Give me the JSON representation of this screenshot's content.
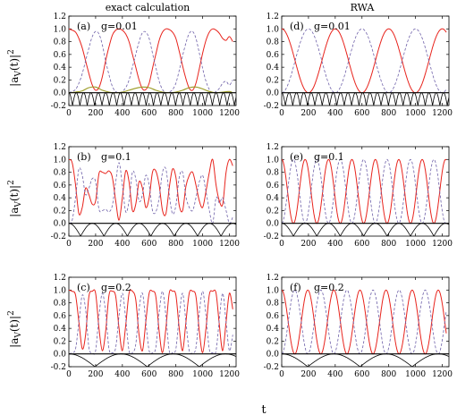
{
  "figure": {
    "column_titles": [
      "exact calculation",
      "RWA"
    ],
    "xlabel": "t",
    "ylabel": "|a_v(t)|^2",
    "ylabel_base": "|a",
    "ylabel_sub": "V",
    "ylabel_tail": "(t)|",
    "ylabel_sup": "2"
  },
  "chart_data": [
    {
      "type": "line",
      "panel": "(a)",
      "label": "g=0.01",
      "column": "exact calculation",
      "xlim": [
        0,
        1250
      ],
      "ylim": [
        -0.2,
        1.2
      ],
      "xticks": [
        0,
        200,
        400,
        600,
        800,
        1000,
        1200
      ],
      "yticks": [
        -0.2,
        0.0,
        0.2,
        0.4,
        0.6,
        0.8,
        1.0,
        1.2
      ],
      "ytick_labels": [
        "-0.2",
        "0.0",
        "0.2",
        "0.4",
        "0.6",
        "0.8",
        "1.0",
        "1.2"
      ],
      "series": [
        {
          "style": "solid-red",
          "x": [
            0,
            25,
            50,
            75,
            100,
            125,
            150,
            175,
            200,
            225,
            250,
            275,
            300,
            325,
            350,
            375,
            400,
            425,
            450,
            475,
            500,
            525,
            550,
            575,
            600,
            625,
            650,
            675,
            700,
            725,
            750,
            775,
            800,
            825,
            850,
            875,
            900,
            925,
            950,
            975,
            1000,
            1025,
            1050,
            1075,
            1100,
            1125,
            1150,
            1175,
            1200,
            1225
          ],
          "values": [
            1.0,
            0.98,
            0.95,
            0.85,
            0.7,
            0.5,
            0.3,
            0.12,
            0.04,
            0.08,
            0.25,
            0.5,
            0.72,
            0.9,
            0.98,
            1.0,
            0.98,
            0.92,
            0.8,
            0.6,
            0.4,
            0.2,
            0.06,
            0.05,
            0.15,
            0.38,
            0.6,
            0.82,
            0.95,
            1.0,
            0.99,
            0.95,
            0.85,
            0.65,
            0.42,
            0.22,
            0.07,
            0.04,
            0.15,
            0.38,
            0.62,
            0.82,
            0.95,
            1.0,
            0.98,
            0.93,
            0.85,
            0.82,
            0.88,
            0.8
          ]
        },
        {
          "style": "dashed-blue",
          "x": [
            0,
            25,
            50,
            75,
            100,
            125,
            150,
            175,
            200,
            225,
            250,
            275,
            300,
            325,
            350,
            375,
            400,
            425,
            450,
            475,
            500,
            525,
            550,
            575,
            600,
            625,
            650,
            675,
            700,
            725,
            750,
            775,
            800,
            825,
            850,
            875,
            900,
            925,
            950,
            975,
            1000,
            1025,
            1050,
            1075,
            1100,
            1125,
            1150,
            1175,
            1200,
            1225
          ],
          "values": [
            0.0,
            0.02,
            0.05,
            0.15,
            0.3,
            0.5,
            0.7,
            0.88,
            0.96,
            0.92,
            0.75,
            0.5,
            0.28,
            0.1,
            0.02,
            0.0,
            0.02,
            0.08,
            0.2,
            0.4,
            0.6,
            0.8,
            0.94,
            0.95,
            0.85,
            0.62,
            0.4,
            0.18,
            0.05,
            0.0,
            0.01,
            0.05,
            0.15,
            0.35,
            0.58,
            0.78,
            0.93,
            0.96,
            0.85,
            0.62,
            0.38,
            0.18,
            0.05,
            0.0,
            0.02,
            0.07,
            0.15,
            0.18,
            0.12,
            0.2
          ]
        },
        {
          "style": "solid-olive",
          "x": [
            0,
            50,
            100,
            150,
            200,
            250,
            300,
            350,
            400,
            450,
            500,
            550,
            600,
            650,
            700,
            750,
            800,
            850,
            900,
            950,
            1000,
            1050,
            1100,
            1150,
            1200,
            1225
          ],
          "values": [
            0.0,
            0.01,
            0.03,
            0.08,
            0.09,
            0.04,
            0.01,
            0.0,
            0.01,
            0.04,
            0.07,
            0.09,
            0.08,
            0.04,
            0.01,
            0.0,
            0.01,
            0.04,
            0.08,
            0.09,
            0.06,
            0.02,
            0.0,
            0.01,
            0.02,
            0.0
          ]
        },
        {
          "style": "solid-black",
          "x": [
            0,
            1250
          ],
          "values": [
            0,
            0
          ]
        },
        {
          "style": "black-oscillation",
          "ymin": -0.2,
          "ymax": 0.0,
          "x_start": 0,
          "x_end": 1250,
          "period": 55
        }
      ]
    },
    {
      "type": "line",
      "panel": "(b)",
      "label": "g=0.1",
      "column": "exact calculation",
      "xlim": [
        0,
        1250
      ],
      "ylim": [
        -0.2,
        1.2
      ],
      "xticks": [
        0,
        200,
        400,
        600,
        800,
        1000,
        1200
      ],
      "yticks": [
        -0.2,
        0.0,
        0.2,
        0.4,
        0.6,
        0.8,
        1.0,
        1.2
      ],
      "ytick_labels": [
        "-0.2",
        "0.0",
        "0.2",
        "0.4",
        "0.6",
        "0.8",
        "1.0",
        "1.2"
      ],
      "series": [
        {
          "style": "solid-red",
          "x": [
            0,
            25,
            50,
            75,
            100,
            125,
            150,
            175,
            200,
            225,
            250,
            275,
            300,
            325,
            350,
            375,
            400,
            425,
            450,
            475,
            500,
            525,
            550,
            575,
            600,
            625,
            650,
            675,
            700,
            725,
            750,
            775,
            800,
            825,
            850,
            875,
            900,
            925,
            950,
            975,
            1000,
            1025,
            1050,
            1075,
            1100,
            1125,
            1150,
            1175,
            1200,
            1225
          ],
          "values": [
            1.0,
            0.95,
            0.6,
            0.15,
            0.25,
            0.55,
            0.45,
            0.3,
            0.35,
            0.78,
            0.8,
            0.78,
            0.82,
            0.72,
            0.35,
            0.05,
            0.4,
            0.82,
            0.65,
            0.2,
            0.3,
            0.65,
            0.55,
            0.25,
            0.4,
            0.8,
            0.82,
            0.6,
            0.2,
            0.15,
            0.55,
            0.85,
            0.72,
            0.28,
            0.2,
            0.58,
            0.75,
            0.8,
            0.6,
            0.35,
            0.25,
            0.5,
            0.8,
            1.0,
            0.6,
            0.35,
            0.3,
            0.8,
            1.0,
            0.9
          ]
        },
        {
          "style": "dashed-blue",
          "x": [
            0,
            25,
            50,
            75,
            100,
            125,
            150,
            175,
            200,
            225,
            250,
            275,
            300,
            325,
            350,
            375,
            400,
            425,
            450,
            475,
            500,
            525,
            550,
            575,
            600,
            625,
            650,
            675,
            700,
            725,
            750,
            775,
            800,
            825,
            850,
            875,
            900,
            925,
            950,
            975,
            1000,
            1025,
            1050,
            1075,
            1100,
            1125,
            1150,
            1175,
            1200,
            1225
          ],
          "values": [
            0.0,
            0.05,
            0.4,
            0.85,
            0.75,
            0.45,
            0.55,
            0.7,
            0.65,
            0.22,
            0.2,
            0.22,
            0.18,
            0.28,
            0.65,
            0.95,
            0.6,
            0.18,
            0.35,
            0.8,
            0.7,
            0.35,
            0.45,
            0.75,
            0.6,
            0.2,
            0.18,
            0.4,
            0.8,
            0.85,
            0.45,
            0.15,
            0.28,
            0.72,
            0.8,
            0.42,
            0.25,
            0.2,
            0.4,
            0.65,
            0.75,
            0.5,
            0.2,
            0.0,
            0.4,
            0.32,
            0.4,
            0.2,
            0.0,
            0.1
          ]
        },
        {
          "style": "solid-black",
          "x": [
            0,
            1250
          ],
          "values": [
            0,
            0
          ]
        },
        {
          "style": "black-oscillation",
          "ymin": -0.2,
          "ymax": 0.0,
          "x_start": 0,
          "x_end": 1250,
          "period": 175
        }
      ]
    },
    {
      "type": "line",
      "panel": "(c)",
      "label": "g=0.2",
      "column": "exact calculation",
      "xlim": [
        0,
        1250
      ],
      "ylim": [
        -0.2,
        1.2
      ],
      "xticks": [
        0,
        200,
        400,
        600,
        800,
        1000,
        1200
      ],
      "yticks": [
        -0.2,
        0.0,
        0.2,
        0.4,
        0.6,
        0.8,
        1.0,
        1.2
      ],
      "ytick_labels": [
        "-0.2",
        "0.0",
        "0.2",
        "0.4",
        "0.6",
        "0.8",
        "1.0",
        "1.2"
      ],
      "series": [
        {
          "style": "solid-red",
          "x": [
            0,
            25,
            50,
            75,
            100,
            125,
            150,
            175,
            200,
            225,
            250,
            275,
            300,
            325,
            350,
            375,
            400,
            425,
            450,
            475,
            500,
            525,
            550,
            575,
            600,
            625,
            650,
            675,
            700,
            725,
            750,
            775,
            800,
            825,
            850,
            875,
            900,
            925,
            950,
            975,
            1000,
            1025,
            1050,
            1075,
            1100,
            1125,
            1150,
            1175,
            1200,
            1225
          ],
          "values": [
            1.0,
            0.98,
            0.92,
            0.5,
            0.08,
            0.3,
            0.9,
            0.98,
            0.95,
            0.4,
            0.05,
            0.35,
            0.92,
            0.98,
            0.9,
            0.4,
            0.05,
            0.45,
            0.95,
            0.98,
            0.85,
            0.3,
            0.05,
            0.5,
            0.95,
            0.98,
            0.9,
            0.35,
            0.02,
            0.4,
            0.95,
            0.98,
            0.92,
            0.4,
            0.05,
            0.5,
            0.95,
            0.98,
            0.9,
            0.35,
            0.02,
            0.4,
            0.93,
            0.98,
            0.95,
            0.45,
            0.05,
            0.5,
            0.95,
            0.7
          ]
        },
        {
          "style": "dashed-blue",
          "x": [
            0,
            25,
            50,
            75,
            100,
            125,
            150,
            175,
            200,
            225,
            250,
            275,
            300,
            325,
            350,
            375,
            400,
            425,
            450,
            475,
            500,
            525,
            550,
            575,
            600,
            625,
            650,
            675,
            700,
            725,
            750,
            775,
            800,
            825,
            850,
            875,
            900,
            925,
            950,
            975,
            1000,
            1025,
            1050,
            1075,
            1100,
            1125,
            1150,
            1175,
            1200,
            1225
          ],
          "values": [
            0.0,
            0.02,
            0.08,
            0.5,
            0.92,
            0.7,
            0.1,
            0.02,
            0.05,
            0.6,
            0.95,
            0.65,
            0.08,
            0.02,
            0.1,
            0.6,
            0.95,
            0.55,
            0.05,
            0.02,
            0.15,
            0.7,
            0.95,
            0.5,
            0.05,
            0.02,
            0.1,
            0.65,
            0.98,
            0.6,
            0.05,
            0.02,
            0.08,
            0.6,
            0.95,
            0.5,
            0.05,
            0.02,
            0.1,
            0.65,
            0.98,
            0.6,
            0.07,
            0.02,
            0.05,
            0.55,
            0.95,
            0.5,
            0.05,
            0.3
          ]
        },
        {
          "style": "solid-black",
          "x": [
            0,
            1250
          ],
          "values": [
            0,
            0
          ]
        },
        {
          "style": "black-oscillation",
          "ymin": -0.2,
          "ymax": 0.0,
          "x_start": 0,
          "x_end": 1250,
          "period": 390
        }
      ]
    },
    {
      "type": "line",
      "panel": "(d)",
      "label": "g=0.01",
      "column": "RWA",
      "xlim": [
        0,
        1250
      ],
      "ylim": [
        -0.2,
        1.2
      ],
      "xticks": [
        0,
        200,
        400,
        600,
        800,
        1000,
        1200
      ],
      "yticks": [
        -0.2,
        0.0,
        0.2,
        0.4,
        0.6,
        0.8,
        1.0,
        1.2
      ],
      "ytick_labels": [
        "-0.2",
        "0.0",
        "0.2",
        "0.4",
        "0.6",
        "0.8",
        "1.0",
        "1.2"
      ],
      "series": [
        {
          "style": "solid-red",
          "formula": "cos2",
          "period": 400,
          "phase": 0,
          "x_start": 0,
          "x_end": 1230
        },
        {
          "style": "dashed-blue",
          "formula": "sin2",
          "period": 400,
          "phase": 0,
          "x_start": 0,
          "x_end": 1230
        },
        {
          "style": "solid-black",
          "x": [
            0,
            1250
          ],
          "values": [
            0,
            0
          ]
        },
        {
          "style": "black-oscillation",
          "ymin": -0.2,
          "ymax": 0.0,
          "x_start": 0,
          "x_end": 1250,
          "period": 55
        }
      ]
    },
    {
      "type": "line",
      "panel": "(e)",
      "label": "g=0.1",
      "column": "RWA",
      "xlim": [
        0,
        1250
      ],
      "ylim": [
        -0.2,
        1.2
      ],
      "xticks": [
        0,
        200,
        400,
        600,
        800,
        1000,
        1200
      ],
      "yticks": [
        -0.2,
        0.0,
        0.2,
        0.4,
        0.6,
        0.8,
        1.0,
        1.2
      ],
      "ytick_labels": [
        "-0.2",
        "0.0",
        "0.2",
        "0.4",
        "0.6",
        "0.8",
        "1.0",
        "1.2"
      ],
      "series": [
        {
          "style": "solid-red",
          "formula": "cos2",
          "period": 175,
          "phase": 0,
          "x_start": 0,
          "x_end": 1230
        },
        {
          "style": "dashed-blue",
          "formula": "sin2",
          "period": 175,
          "phase": 0,
          "x_start": 0,
          "x_end": 1230
        },
        {
          "style": "solid-black",
          "x": [
            0,
            1250
          ],
          "values": [
            0,
            0
          ]
        },
        {
          "style": "black-oscillation",
          "ymin": -0.2,
          "ymax": 0.0,
          "x_start": 0,
          "x_end": 1250,
          "period": 175
        }
      ]
    },
    {
      "type": "line",
      "panel": "(f)",
      "label": "g=0.2",
      "column": "RWA",
      "xlim": [
        0,
        1250
      ],
      "ylim": [
        -0.2,
        1.2
      ],
      "xticks": [
        0,
        200,
        400,
        600,
        800,
        1000,
        1200
      ],
      "yticks": [
        -0.2,
        0.0,
        0.2,
        0.4,
        0.6,
        0.8,
        1.0,
        1.2
      ],
      "ytick_labels": [
        "-0.2",
        "0.0",
        "0.2",
        "0.4",
        "0.6",
        "0.8",
        "1.0",
        "1.2"
      ],
      "series": [
        {
          "style": "solid-red",
          "formula": "cos2",
          "period": 195,
          "phase": 0,
          "x_start": 0,
          "x_end": 1230
        },
        {
          "style": "dashed-blue",
          "formula": "sin2",
          "period": 195,
          "phase": 0,
          "x_start": 0,
          "x_end": 1230
        },
        {
          "style": "solid-black",
          "x": [
            0,
            1250
          ],
          "values": [
            0,
            0
          ]
        },
        {
          "style": "black-oscillation",
          "ymin": -0.2,
          "ymax": 0.0,
          "x_start": 0,
          "x_end": 1250,
          "period": 390
        }
      ]
    }
  ],
  "colors": {
    "red": "#e8231c",
    "blue": "#6d5fa8",
    "olive": "#9a9a22",
    "black": "#000000"
  }
}
